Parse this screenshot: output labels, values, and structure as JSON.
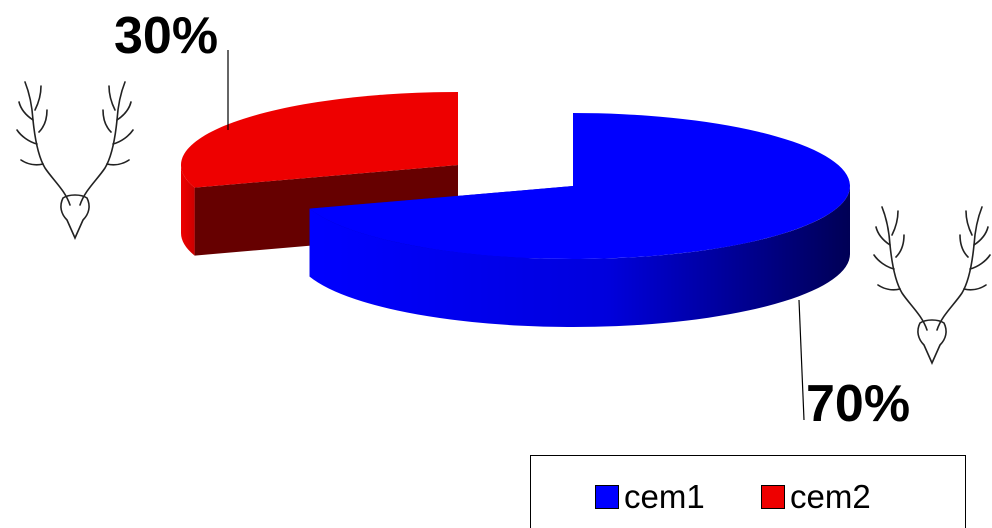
{
  "chart_data": {
    "type": "pie",
    "style": "3d-exploded",
    "categories": [
      "cem1",
      "cem2"
    ],
    "values": [
      70,
      30
    ],
    "unit": "%",
    "data_labels": [
      "70%",
      "30%"
    ],
    "colors": [
      "#0000ff",
      "#ee0000"
    ],
    "legend": {
      "position": "bottom-right",
      "entries": [
        "cem1",
        "cem2"
      ]
    }
  },
  "decorations": {
    "icons": [
      "deer-antlers-icon",
      "deer-antlers-icon"
    ]
  }
}
